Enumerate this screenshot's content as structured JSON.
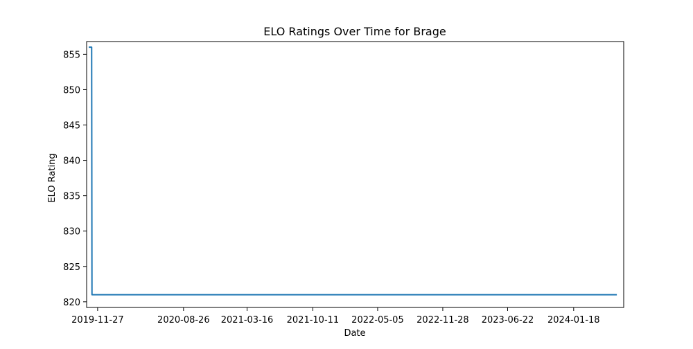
{
  "chart_data": {
    "type": "line",
    "title": "ELO Ratings Over Time for Brage",
    "xlabel": "Date",
    "ylabel": "ELO Rating",
    "x_ticks": [
      "2019-11-27",
      "2020-08-26",
      "2021-03-16",
      "2021-10-11",
      "2022-05-05",
      "2022-11-28",
      "2023-06-22",
      "2024-01-18"
    ],
    "y_ticks": [
      820,
      825,
      830,
      835,
      840,
      845,
      850,
      855
    ],
    "xlim": [
      "2019-10-23",
      "2024-06-25"
    ],
    "ylim": [
      819.2,
      856.8
    ],
    "series": [
      {
        "color": "#1f77b4",
        "points": [
          {
            "x": "2019-11-01",
            "y": 856
          },
          {
            "x": "2019-11-08",
            "y": 856
          },
          {
            "x": "2019-11-09",
            "y": 821
          },
          {
            "x": "2024-06-01",
            "y": 821
          }
        ]
      }
    ],
    "grid": false,
    "legend": "none"
  }
}
